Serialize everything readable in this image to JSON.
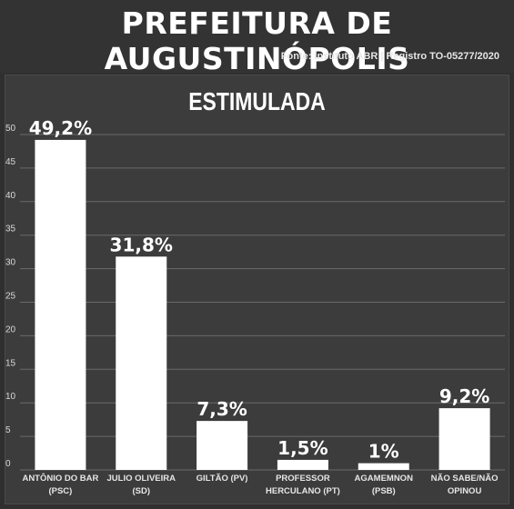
{
  "header": {
    "title": "PREFEITURA DE AUGUSTINÓPOLIS",
    "source": "Fonte: Instituto ABR | Registro TO-05277/2020"
  },
  "colors": {
    "background": "#2f2f2f",
    "panel": "#3c3c3c",
    "bar": "#ffffff",
    "grid": "#6a6a6a"
  },
  "chart_data": {
    "type": "bar",
    "title": "ESTIMULADA",
    "categories": [
      [
        "ANTÔNIO DO BAR",
        "(PSC)"
      ],
      [
        "JULIO OLIVEIRA",
        "(SD)"
      ],
      [
        "GILTÃO (PV)"
      ],
      [
        "PROFESSOR",
        "HERCULANO (PT)"
      ],
      [
        "AGAMEMNON",
        "(PSB)"
      ],
      [
        "NÃO SABE/NÃO",
        "OPINOU"
      ]
    ],
    "values": [
      49.2,
      31.8,
      7.3,
      1.5,
      1,
      9.2
    ],
    "data_labels": [
      "49,2%",
      "31,8%",
      "7,3%",
      "1,5%",
      "1%",
      "9,2%"
    ],
    "yticks": [
      "0",
      "5",
      "10",
      "15",
      "20",
      "25",
      "30",
      "35",
      "40",
      "45",
      "50"
    ],
    "ylim": [
      0,
      50
    ],
    "grid": true,
    "xlabel": "",
    "ylabel": ""
  }
}
